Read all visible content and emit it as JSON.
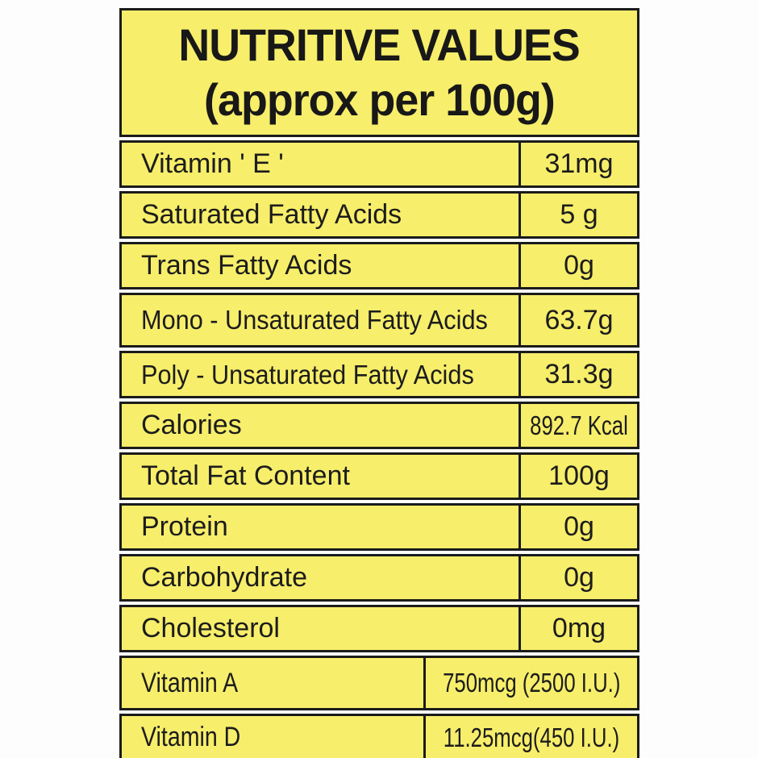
{
  "header": {
    "title_line1": "NUTRITIVE VALUES",
    "title_line2": "(approx per 100g)"
  },
  "table": {
    "rows": [
      {
        "label": "Vitamin ' E '",
        "value": "31mg",
        "variant": ""
      },
      {
        "label": "Saturated Fatty Acids",
        "value": "5 g",
        "variant": ""
      },
      {
        "label": "Trans Fatty Acids",
        "value": "0g",
        "variant": ""
      },
      {
        "label": "Mono - Unsaturated Fatty Acids",
        "value": "63.7g",
        "variant": "tall narrow-label"
      },
      {
        "label": "Poly - Unsaturated Fatty Acids",
        "value": "31.3g",
        "variant": "narrow-label"
      },
      {
        "label": "Calories",
        "value": "892.7 Kcal",
        "variant": "condensed-value"
      },
      {
        "label": "Total Fat Content",
        "value": "100g",
        "variant": ""
      },
      {
        "label": "Protein",
        "value": "0g",
        "variant": ""
      },
      {
        "label": "Carbohydrate",
        "value": "0g",
        "variant": ""
      },
      {
        "label": "Cholesterol",
        "value": "0mg",
        "variant": ""
      },
      {
        "label": "Vitamin A",
        "value": "750mcg (2500 I.U.)",
        "variant": "tall wide-value condensed-value condensed-label"
      },
      {
        "label": "Vitamin D",
        "value": "11.25mcg(450 I.U.)",
        "variant": "wide-value condensed-value condensed-label"
      }
    ]
  },
  "colors": {
    "panel_yellow": "#f7ee6b",
    "border_black": "#1b1b1b",
    "text_black": "#1c1c1c",
    "page_background": "#fdfdfd"
  }
}
